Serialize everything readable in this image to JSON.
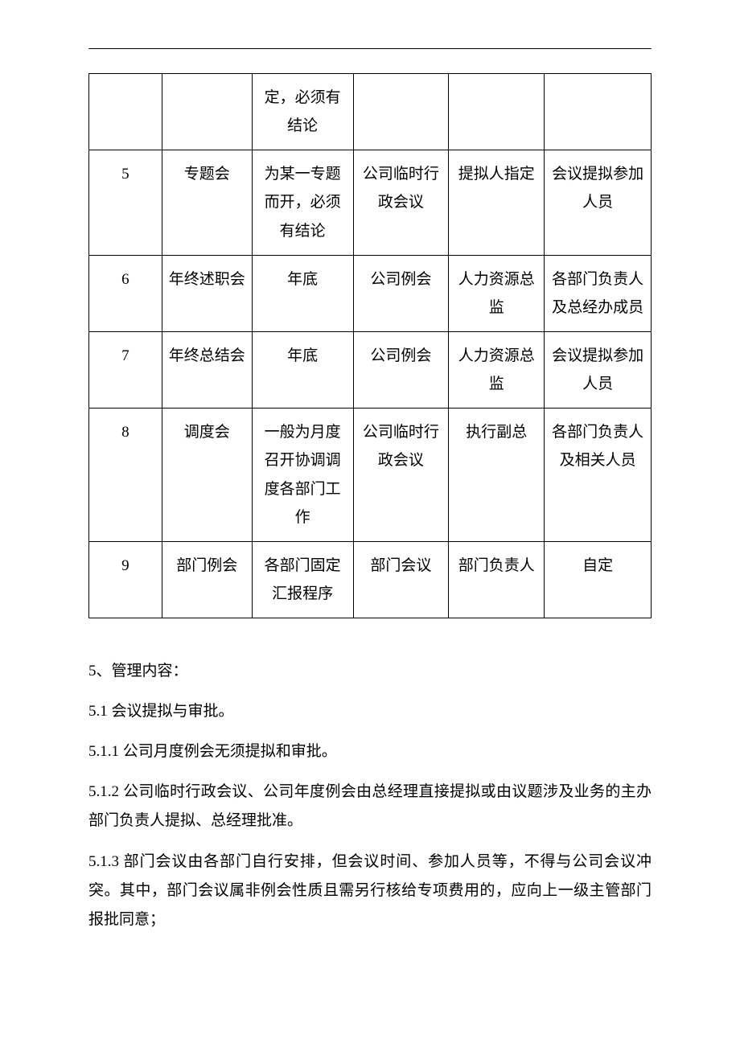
{
  "table": {
    "col_widths_pct": [
      13,
      16,
      18,
      17,
      17,
      19
    ],
    "border_color": "#000000",
    "font_size_pt": 14,
    "rows": [
      {
        "cells": [
          "",
          "",
          "定，必须有结论",
          "",
          "",
          ""
        ]
      },
      {
        "cells": [
          "5",
          "专题会",
          "为某一专题而开，必须有结论",
          "公司临时行政会议",
          "提拟人指定",
          "会议提拟参加人员"
        ]
      },
      {
        "cells": [
          "6",
          "年终述职会",
          "年底",
          "公司例会",
          "人力资源总监",
          "各部门负责人及总经办成员"
        ]
      },
      {
        "cells": [
          "7",
          "年终总结会",
          "年底",
          "公司例会",
          "人力资源总监",
          "会议提拟参加人员"
        ]
      },
      {
        "cells": [
          "8",
          "调度会",
          "一般为月度召开协调调度各部门工作",
          "公司临时行政会议",
          "执行副总",
          "各部门负责人及相关人员"
        ]
      },
      {
        "cells": [
          "9",
          "部门例会",
          "各部门固定汇报程序",
          "部门会议",
          "部门负责人",
          "自定"
        ]
      }
    ]
  },
  "paragraphs": {
    "p1": "5、管理内容：",
    "p2": "5.1 会议提拟与审批。",
    "p3": "5.1.1 公司月度例会无须提拟和审批。",
    "p4": "5.1.2 公司临时行政会议、公司年度例会由总经理直接提拟或由议题涉及业务的主办部门负责人提拟、总经理批准。",
    "p5": "5.1.3 部门会议由各部门自行安排，但会议时间、参加人员等，不得与公司会议冲突。其中，部门会议属非例会性质且需另行核给专项费用的，应向上一级主管部门报批同意；"
  },
  "colors": {
    "background": "#ffffff",
    "text": "#000000",
    "border": "#000000"
  }
}
